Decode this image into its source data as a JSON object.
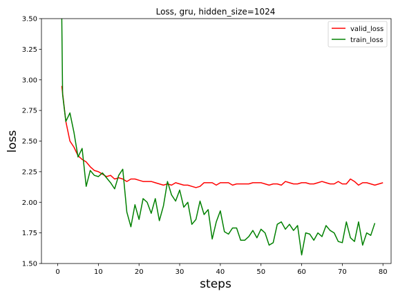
{
  "chart_data": {
    "type": "line",
    "title": "Loss, gru, hidden_size=1024",
    "xlabel": "steps",
    "ylabel": "loss",
    "xlim": [
      -4,
      82
    ],
    "ylim": [
      1.5,
      3.5
    ],
    "xticks": [
      0,
      10,
      20,
      30,
      40,
      50,
      60,
      70,
      80
    ],
    "yticks": [
      1.5,
      1.75,
      2.0,
      2.25,
      2.5,
      2.75,
      3.0,
      3.25,
      3.5
    ],
    "xtick_labels": [
      "0",
      "10",
      "20",
      "30",
      "40",
      "50",
      "60",
      "70",
      "80"
    ],
    "ytick_labels": [
      "1.50",
      "1.75",
      "2.00",
      "2.25",
      "2.50",
      "2.75",
      "3.00",
      "3.25",
      "3.50"
    ],
    "grid": false,
    "legend_position": "top-right",
    "series": [
      {
        "name": "valid_loss",
        "color": "#ff0000",
        "x": [
          1,
          2,
          3,
          4,
          5,
          6,
          7,
          8,
          9,
          10,
          11,
          12,
          13,
          14,
          15,
          16,
          17,
          18,
          19,
          20,
          21,
          22,
          23,
          24,
          25,
          26,
          27,
          28,
          29,
          30,
          31,
          32,
          33,
          34,
          35,
          36,
          37,
          38,
          39,
          40,
          41,
          42,
          43,
          44,
          45,
          46,
          47,
          48,
          49,
          50,
          51,
          52,
          53,
          54,
          55,
          56,
          57,
          58,
          59,
          60,
          61,
          62,
          63,
          64,
          65,
          66,
          67,
          68,
          69,
          70,
          71,
          72,
          73,
          74,
          75,
          76,
          77,
          78,
          79,
          80
        ],
        "y": [
          2.95,
          2.66,
          2.5,
          2.45,
          2.38,
          2.35,
          2.33,
          2.29,
          2.26,
          2.25,
          2.23,
          2.21,
          2.22,
          2.19,
          2.2,
          2.19,
          2.17,
          2.19,
          2.19,
          2.18,
          2.17,
          2.17,
          2.17,
          2.16,
          2.15,
          2.14,
          2.15,
          2.14,
          2.16,
          2.15,
          2.14,
          2.14,
          2.13,
          2.12,
          2.13,
          2.16,
          2.16,
          2.16,
          2.14,
          2.16,
          2.16,
          2.16,
          2.14,
          2.15,
          2.15,
          2.15,
          2.15,
          2.16,
          2.16,
          2.16,
          2.15,
          2.14,
          2.15,
          2.15,
          2.14,
          2.17,
          2.16,
          2.15,
          2.15,
          2.16,
          2.16,
          2.15,
          2.15,
          2.16,
          2.17,
          2.16,
          2.15,
          2.15,
          2.17,
          2.15,
          2.15,
          2.19,
          2.17,
          2.14,
          2.16,
          2.16,
          2.15,
          2.14,
          2.15,
          2.16
        ]
      },
      {
        "name": "train_loss",
        "color": "#008000",
        "x": [
          1,
          1.2,
          2,
          3,
          4,
          5,
          6,
          7,
          8,
          9,
          10,
          11,
          12,
          13,
          14,
          15,
          16,
          17,
          18,
          19,
          20,
          21,
          22,
          23,
          24,
          25,
          26,
          27,
          28,
          29,
          30,
          31,
          32,
          33,
          34,
          35,
          36,
          37,
          38,
          39,
          40,
          41,
          42,
          43,
          44,
          45,
          46,
          47,
          48,
          49,
          50,
          51,
          52,
          53,
          54,
          55,
          56,
          57,
          58,
          59,
          60,
          61,
          62,
          63,
          64,
          65,
          66,
          67,
          68,
          69,
          70,
          71,
          72,
          73,
          74,
          75,
          76,
          77,
          78
        ],
        "y": [
          3.5,
          2.88,
          2.66,
          2.73,
          2.57,
          2.37,
          2.44,
          2.13,
          2.26,
          2.22,
          2.21,
          2.24,
          2.2,
          2.16,
          2.11,
          2.22,
          2.27,
          1.92,
          1.8,
          1.98,
          1.86,
          2.03,
          2.0,
          1.91,
          2.03,
          1.85,
          1.97,
          2.17,
          2.06,
          2.01,
          2.1,
          1.96,
          2.0,
          1.82,
          1.86,
          2.01,
          1.9,
          1.94,
          1.7,
          1.84,
          1.93,
          1.76,
          1.74,
          1.79,
          1.79,
          1.69,
          1.69,
          1.72,
          1.77,
          1.71,
          1.78,
          1.75,
          1.65,
          1.67,
          1.82,
          1.84,
          1.78,
          1.82,
          1.77,
          1.81,
          1.57,
          1.75,
          1.74,
          1.69,
          1.75,
          1.72,
          1.81,
          1.77,
          1.75,
          1.68,
          1.67,
          1.84,
          1.71,
          1.68,
          1.84,
          1.65,
          1.75,
          1.73,
          1.83
        ]
      }
    ]
  }
}
